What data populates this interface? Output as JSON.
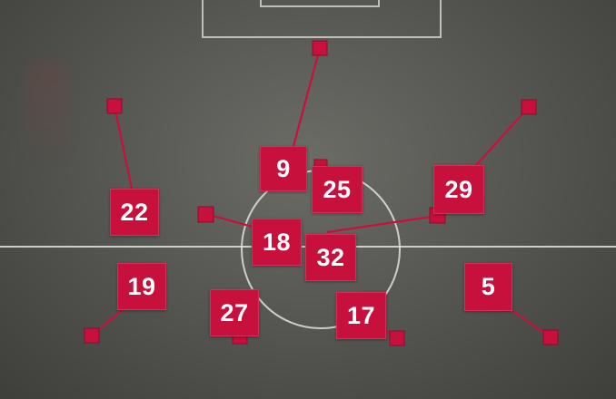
{
  "colors": {
    "tag_bg": "#c8103c",
    "tag_text": "#ffffff",
    "link_line": "#c8103c",
    "pitch_lines": "#d8d8d4"
  },
  "players": [
    {
      "number": "9"
    },
    {
      "number": "25"
    },
    {
      "number": "22"
    },
    {
      "number": "29"
    },
    {
      "number": "18"
    },
    {
      "number": "32"
    },
    {
      "number": "19"
    },
    {
      "number": "27"
    },
    {
      "number": "17"
    },
    {
      "number": "5"
    }
  ]
}
